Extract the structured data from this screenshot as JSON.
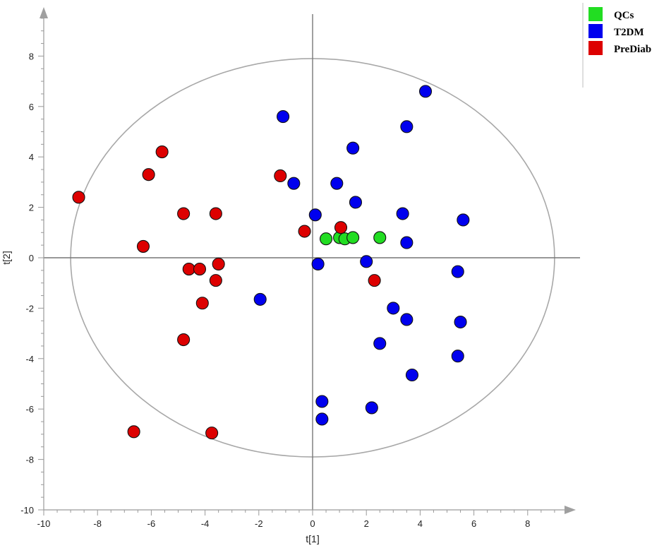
{
  "chart_data": {
    "type": "scatter",
    "title": "",
    "xlabel": "t[1]",
    "ylabel": "t[2]",
    "xlim": [
      -10,
      9.5
    ],
    "ylim": [
      -10,
      10
    ],
    "xticks": [
      -10,
      -8,
      -6,
      -4,
      -2,
      0,
      2,
      4,
      6,
      8
    ],
    "yticks": [
      -10,
      -8,
      -6,
      -4,
      -2,
      0,
      2,
      4,
      6,
      8
    ],
    "grid": false,
    "legend_position": "top-right",
    "ellipse": {
      "cx": 0,
      "cy": 0,
      "rx": 9,
      "ry": 7.9
    },
    "series": [
      {
        "name": "QCs",
        "color": "#22dd22",
        "points": [
          [
            0.5,
            0.75
          ],
          [
            1.0,
            0.8
          ],
          [
            1.2,
            0.75
          ],
          [
            1.5,
            0.8
          ],
          [
            2.5,
            0.8
          ]
        ]
      },
      {
        "name": "T2DM",
        "color": "#0000ee",
        "points": [
          [
            4.2,
            6.6
          ],
          [
            -1.1,
            5.6
          ],
          [
            3.5,
            5.2
          ],
          [
            1.5,
            4.35
          ],
          [
            -0.7,
            2.95
          ],
          [
            0.9,
            2.95
          ],
          [
            1.6,
            2.2
          ],
          [
            0.1,
            1.7
          ],
          [
            3.35,
            1.75
          ],
          [
            5.6,
            1.5
          ],
          [
            3.5,
            0.6
          ],
          [
            0.2,
            -0.25
          ],
          [
            2.0,
            -0.15
          ],
          [
            5.4,
            -0.55
          ],
          [
            -1.95,
            -1.65
          ],
          [
            3.0,
            -2.0
          ],
          [
            3.5,
            -2.45
          ],
          [
            5.5,
            -2.55
          ],
          [
            2.5,
            -3.4
          ],
          [
            5.4,
            -3.9
          ],
          [
            3.7,
            -4.65
          ],
          [
            0.35,
            -5.7
          ],
          [
            2.2,
            -5.95
          ],
          [
            0.35,
            -6.4
          ]
        ]
      },
      {
        "name": "PreDiab",
        "color": "#dd0000",
        "points": [
          [
            -5.6,
            4.2
          ],
          [
            -6.1,
            3.3
          ],
          [
            -1.2,
            3.25
          ],
          [
            -8.7,
            2.4
          ],
          [
            -4.8,
            1.75
          ],
          [
            -3.6,
            1.75
          ],
          [
            -0.3,
            1.05
          ],
          [
            1.05,
            1.2
          ],
          [
            -6.3,
            0.45
          ],
          [
            -3.5,
            -0.25
          ],
          [
            -4.6,
            -0.45
          ],
          [
            -4.2,
            -0.45
          ],
          [
            -3.6,
            -0.9
          ],
          [
            2.3,
            -0.9
          ],
          [
            -4.1,
            -1.8
          ],
          [
            -4.8,
            -3.25
          ],
          [
            -6.65,
            -6.9
          ],
          [
            -3.75,
            -6.95
          ]
        ]
      }
    ]
  }
}
